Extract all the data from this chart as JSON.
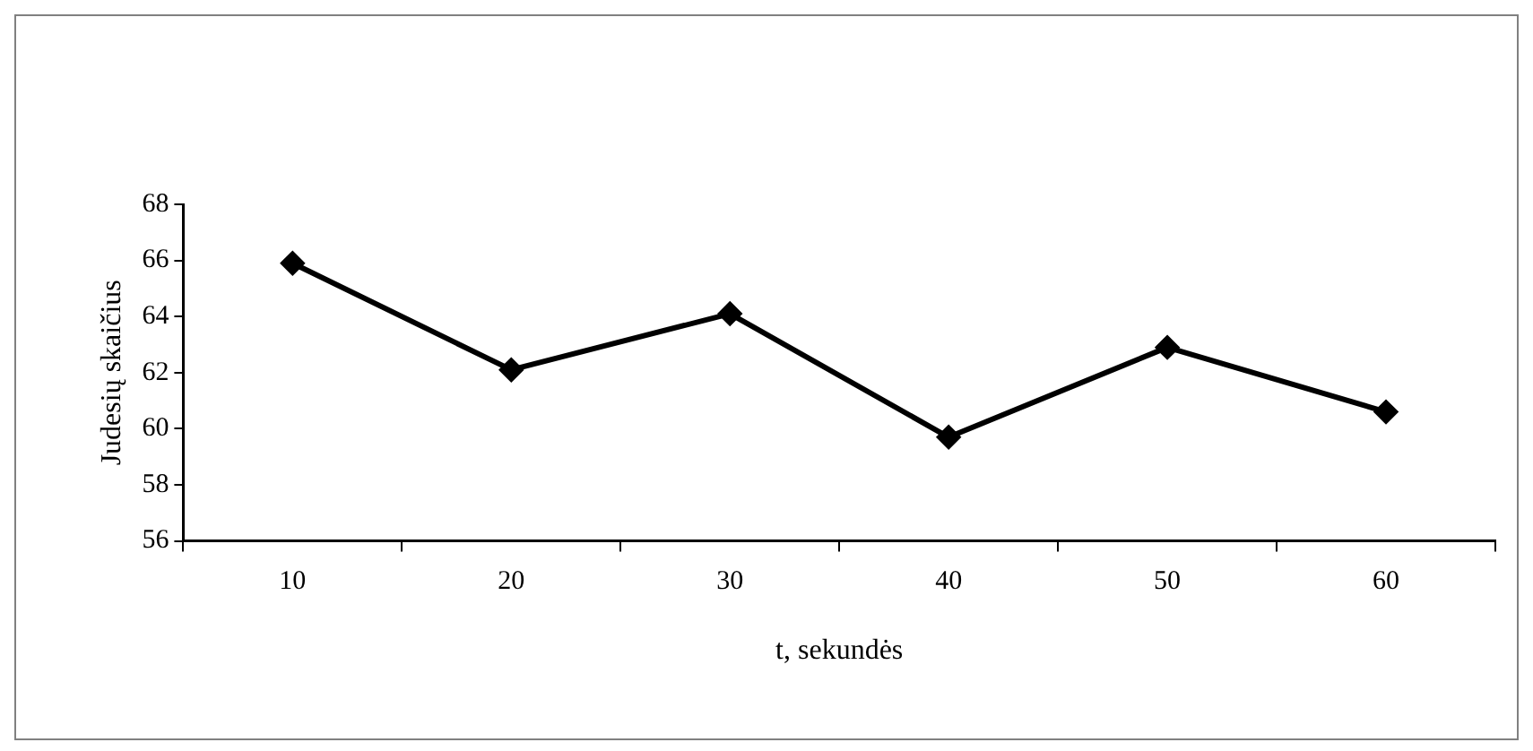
{
  "chart_data": {
    "type": "line",
    "xlabel": "t, sekundės",
    "ylabel": "Judesių skaičius",
    "categories": [
      "10",
      "20",
      "30",
      "40",
      "50",
      "60"
    ],
    "series": [
      {
        "color": "#000000",
        "values": [
          65.9,
          62.1,
          64.1,
          59.7,
          62.9,
          60.6
        ]
      }
    ],
    "ylim": [
      56,
      68
    ],
    "yticks": [
      56,
      58,
      60,
      62,
      64,
      66,
      68
    ],
    "grid": false,
    "legend": false,
    "marker": "diamond",
    "line_style": "solid"
  }
}
